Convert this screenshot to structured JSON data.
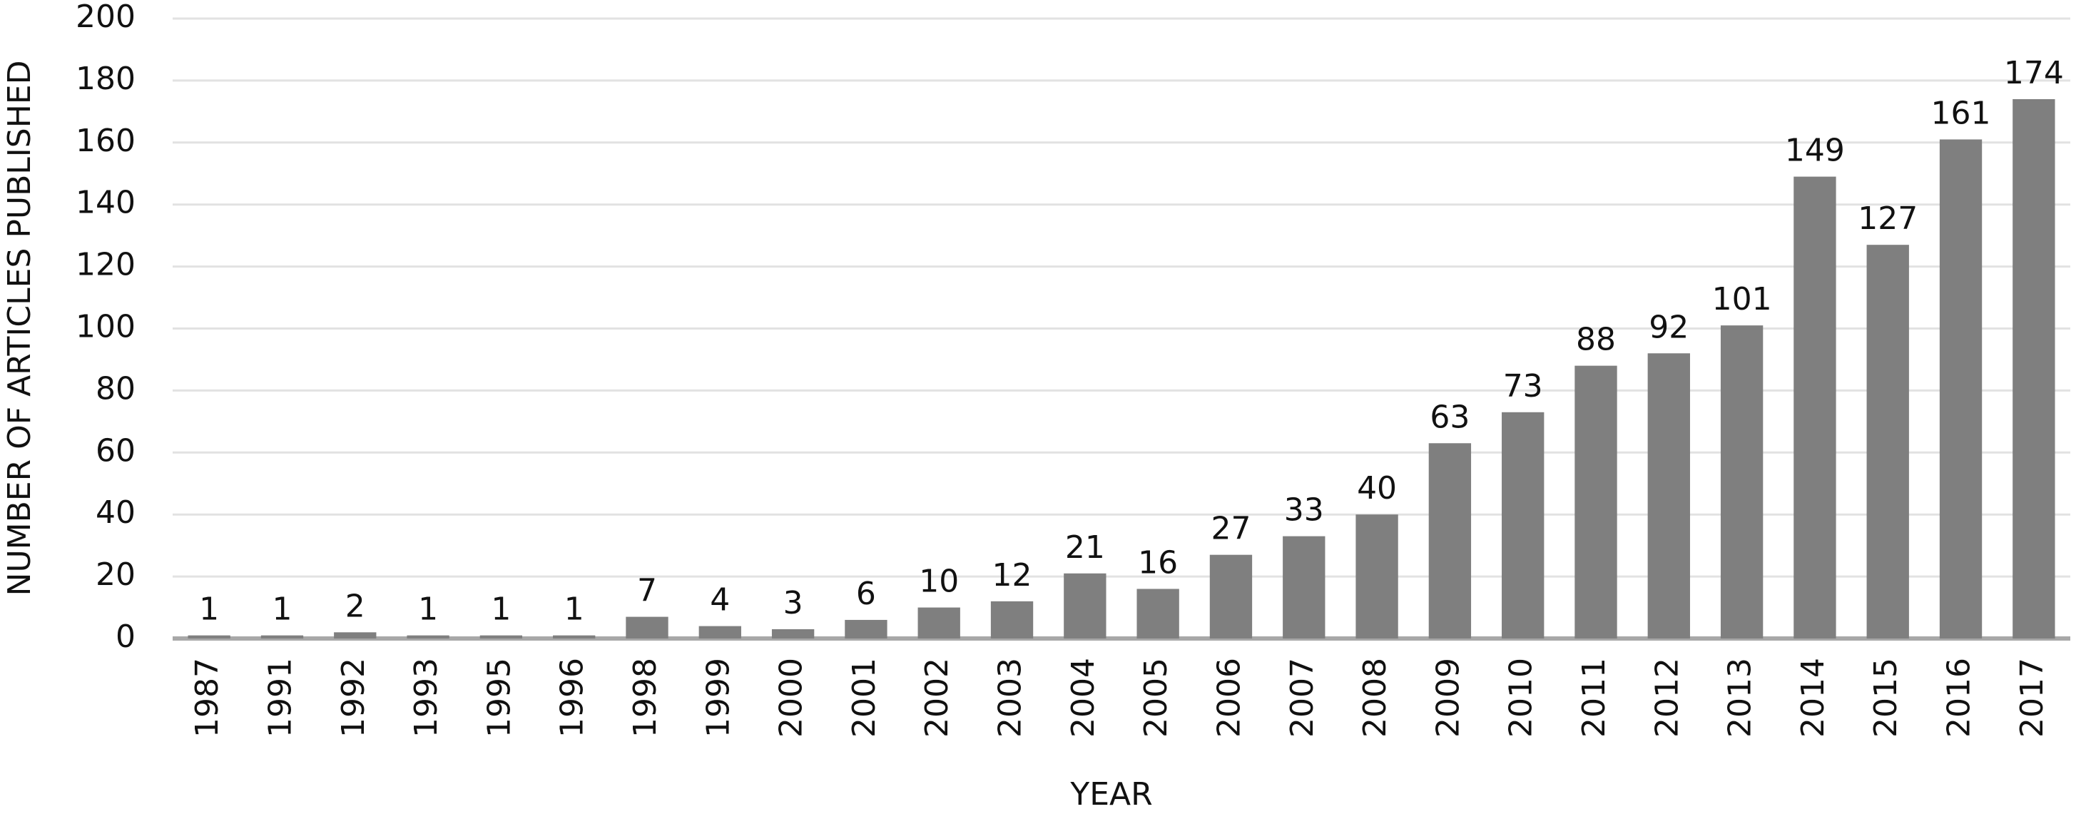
{
  "chart_data": {
    "type": "bar",
    "x_label": "YEAR",
    "y_label": "NUMBER OF ARTICLES PUBLISHED",
    "categories": [
      "1987",
      "1991",
      "1992",
      "1993",
      "1995",
      "1996",
      "1998",
      "1999",
      "2000",
      "2001",
      "2002",
      "2003",
      "2004",
      "2005",
      "2006",
      "2007",
      "2008",
      "2009",
      "2010",
      "2011",
      "2012",
      "2013",
      "2014",
      "2015",
      "2016",
      "2017"
    ],
    "values": [
      1,
      1,
      2,
      1,
      1,
      1,
      7,
      4,
      3,
      6,
      10,
      12,
      21,
      16,
      27,
      33,
      40,
      63,
      73,
      88,
      92,
      101,
      149,
      127,
      161,
      174
    ],
    "color": "#7f7f7f",
    "ylim": [
      0,
      200
    ],
    "yticks": [
      0,
      20,
      40,
      60,
      80,
      100,
      120,
      140,
      160,
      180,
      200
    ],
    "grid": true
  }
}
